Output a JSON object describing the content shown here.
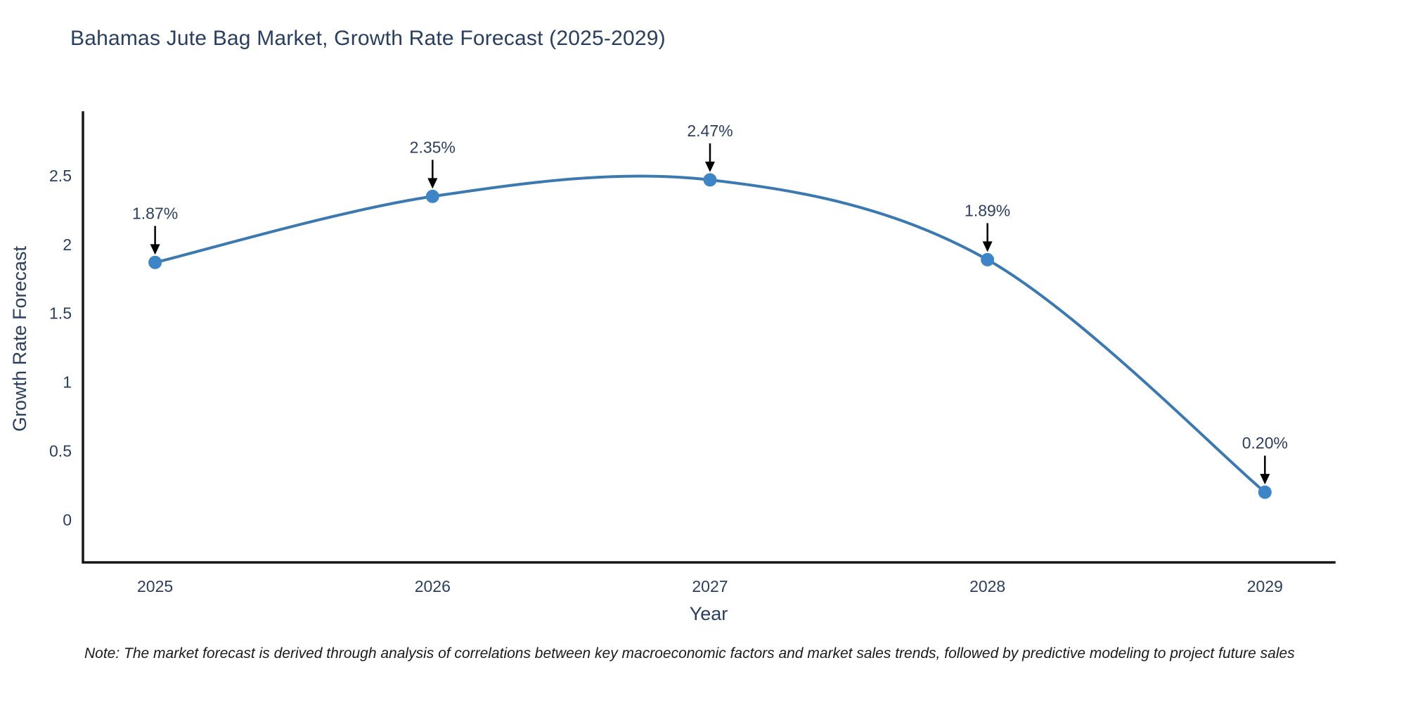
{
  "chart_data": {
    "type": "line",
    "line_shape": "spline",
    "title": "Bahamas Jute Bag Market, Growth Rate Forecast (2025-2029)",
    "xlabel": "Year",
    "ylabel": "Growth Rate Forecast",
    "categories": [
      2025,
      2026,
      2027,
      2028,
      2029
    ],
    "values": [
      1.87,
      2.35,
      2.47,
      1.89,
      0.2
    ],
    "point_labels": [
      "1.87%",
      "2.35%",
      "2.47%",
      "1.89%",
      "0.20%"
    ],
    "yticks": [
      0,
      0.5,
      1,
      1.5,
      2,
      2.5
    ],
    "ytick_labels": [
      "0",
      "0.5",
      "1",
      "1.5",
      "2",
      "2.5"
    ],
    "xtick_labels": [
      "2025",
      "2026",
      "2027",
      "2028",
      "2029"
    ],
    "ylim": [
      -0.31,
      2.96
    ],
    "xlim": [
      2024.74,
      2029.25
    ],
    "grid": false,
    "legend_position": "none",
    "markers": true,
    "annotations_have_arrows": true,
    "colors": {
      "line": "#3c79b0",
      "marker": "#3d85c6",
      "axis_line": "#161616",
      "tick_text": "#2a3f5f",
      "annotation_text": "#2a3f5f",
      "arrow": "#000000",
      "background": "#ffffff"
    }
  },
  "footnote": "Note: The market forecast is derived through analysis of correlations between key macroeconomic factors and market sales trends, followed by predictive modeling to project future sales"
}
